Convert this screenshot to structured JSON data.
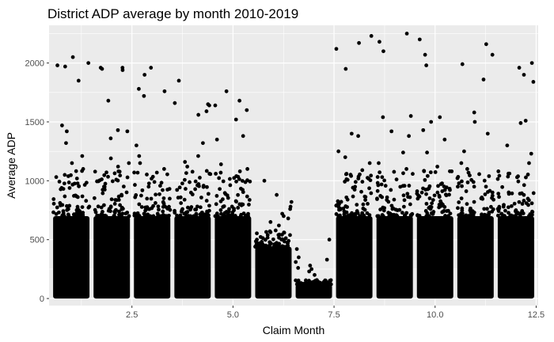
{
  "chart_data": {
    "type": "scatter",
    "title": "District ADP average by month 2010-2019",
    "xlabel": "Claim Month",
    "ylabel": "Average ADP",
    "xlim": [
      0.45,
      12.55
    ],
    "ylim": [
      -60,
      2320
    ],
    "x_ticks": [
      2.5,
      5.0,
      7.5,
      10.0,
      12.5
    ],
    "x_tick_labels": [
      "2.5",
      "5.0",
      "7.5",
      "10.0",
      "12.5"
    ],
    "y_ticks": [
      0,
      500,
      1000,
      1500,
      2000
    ],
    "y_tick_labels": [
      "0",
      "500",
      "1000",
      "1500",
      "2000"
    ],
    "grid": true,
    "point_color": "#000000",
    "panel_color": "#ebebeb",
    "gridline_color": "#ffffff",
    "jitter_width": 0.45,
    "months": [
      {
        "month": 1,
        "dense_max": 700,
        "outliers": [
          1320,
          1420,
          1470,
          1970,
          1980,
          2050,
          2000,
          1850,
          1150,
          1100,
          1210,
          1050
        ]
      },
      {
        "month": 2,
        "dense_max": 700,
        "outliers": [
          1960,
          1940,
          1950,
          1960,
          1430,
          1420,
          1680,
          1360,
          1150,
          1120,
          1190,
          1080
        ]
      },
      {
        "month": 3,
        "dense_max": 700,
        "outliers": [
          1900,
          1960,
          1780,
          1760,
          1720,
          1300,
          1210,
          1100,
          1150,
          1070
        ]
      },
      {
        "month": 4,
        "dense_max": 700,
        "outliers": [
          1650,
          1660,
          1640,
          1850,
          1560,
          1320,
          1590,
          1210,
          1120,
          1160,
          1060
        ]
      },
      {
        "month": 5,
        "dense_max": 700,
        "outliers": [
          1600,
          1640,
          1760,
          1680,
          1350,
          1520,
          1380,
          1140,
          1080,
          1100
        ]
      },
      {
        "month": 6,
        "dense_max": 440,
        "outliers": [
          620,
          650,
          1000,
          820,
          700,
          780,
          760,
          880,
          680,
          720
        ]
      },
      {
        "month": 7,
        "dense_max": 120,
        "outliers": [
          330,
          420,
          500,
          250,
          280,
          310,
          200,
          350,
          230,
          260
        ]
      },
      {
        "month": 8,
        "dense_max": 700,
        "outliers": [
          2120,
          2170,
          2230,
          1950,
          1400,
          1380,
          1250,
          1150,
          1200,
          1090
        ]
      },
      {
        "month": 9,
        "dense_max": 700,
        "outliers": [
          2250,
          2180,
          2100,
          1550,
          1540,
          1420,
          1380,
          1240,
          1150,
          1100
        ]
      },
      {
        "month": 10,
        "dense_max": 700,
        "outliers": [
          2200,
          1540,
          1500,
          1980,
          2070,
          1430,
          1350,
          1240,
          1120,
          1080
        ]
      },
      {
        "month": 11,
        "dense_max": 700,
        "outliers": [
          2070,
          2160,
          1990,
          1860,
          1580,
          1500,
          1400,
          1250,
          1150,
          1100
        ]
      },
      {
        "month": 12,
        "dense_max": 700,
        "outliers": [
          2000,
          1960,
          1900,
          1840,
          1510,
          1490,
          1300,
          1230,
          1150,
          1080
        ]
      }
    ]
  }
}
